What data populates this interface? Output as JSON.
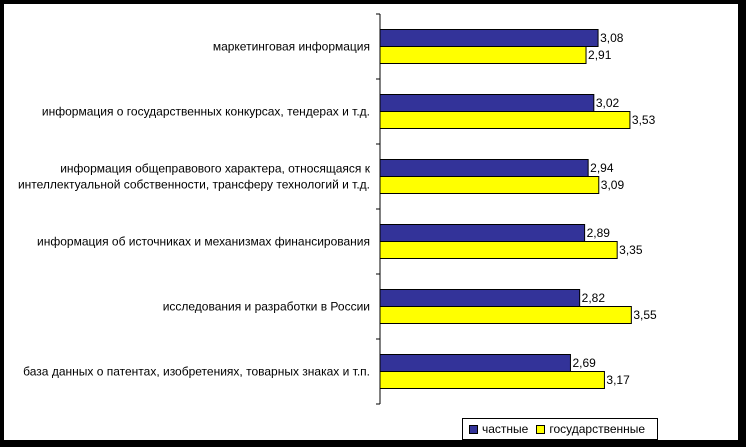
{
  "chart_data": {
    "type": "bar",
    "orientation": "horizontal",
    "categories": [
      [
        "маркетинговая информация"
      ],
      [
        "информация о государственных конкурсах, тендерах и т.д."
      ],
      [
        "информация общеправового характера, относящаяся к",
        "интеллектуальной собственности, трансферу технологий и т.д."
      ],
      [
        "информация об источниках и механизмах финансирования"
      ],
      [
        "исследования и разработки в России"
      ],
      [
        "база данных о патентах, изобретениях, товарных знаках и т.п."
      ]
    ],
    "series": [
      {
        "name": "частные",
        "color": "#333399",
        "values": [
          3.08,
          3.02,
          2.94,
          2.89,
          2.82,
          2.69
        ],
        "labels": [
          "3,08",
          "3,02",
          "2,94",
          "2,89",
          "2,82",
          "2,69"
        ]
      },
      {
        "name": "государственные",
        "color": "#ffff00",
        "values": [
          2.91,
          3.53,
          3.09,
          3.35,
          3.55,
          3.17
        ],
        "labels": [
          "2,91",
          "3,53",
          "3,09",
          "3,35",
          "3,55",
          "3,17"
        ]
      }
    ],
    "xlim": [
      0,
      4
    ],
    "legend_position": "bottom-right",
    "grid": false
  }
}
